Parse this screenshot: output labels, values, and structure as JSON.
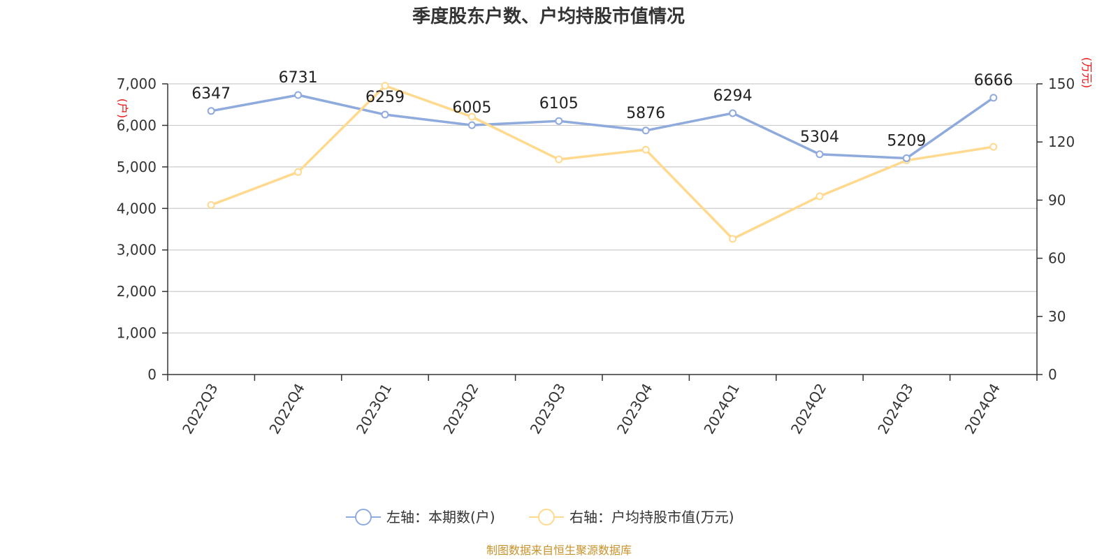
{
  "colors": {
    "left_series": "#8faadc",
    "right_series": "#ffd98e",
    "axis": "#333333",
    "grid": "#cccccc",
    "unit_text": "#ee1111",
    "source_text": "#c8922a"
  },
  "chart_data": {
    "type": "line",
    "title": "季度股东户数、户均持股市值情况",
    "categories": [
      "2022Q3",
      "2022Q4",
      "2023Q1",
      "2023Q2",
      "2023Q3",
      "2023Q4",
      "2024Q1",
      "2024Q2",
      "2024Q3",
      "2024Q4"
    ],
    "left_axis": {
      "unit": "(户)",
      "ylim": [
        0,
        7000
      ],
      "ticks": [
        0,
        1000,
        2000,
        3000,
        4000,
        5000,
        6000,
        7000
      ],
      "tick_labels": [
        "0",
        "1,000",
        "2,000",
        "3,000",
        "4,000",
        "5,000",
        "6,000",
        "7,000"
      ]
    },
    "right_axis": {
      "unit": "(万元)",
      "ylim": [
        0,
        150
      ],
      "ticks": [
        0,
        30,
        60,
        90,
        120,
        150
      ],
      "tick_labels": [
        "0",
        "30",
        "60",
        "90",
        "120",
        "150"
      ]
    },
    "grid": true,
    "legend_position": "bottom-center",
    "series": [
      {
        "name": "左轴：本期数(户)",
        "axis": "left",
        "values": [
          6347,
          6731,
          6259,
          6005,
          6105,
          5876,
          6294,
          5304,
          5209,
          6666
        ],
        "labels": [
          "6347",
          "6731",
          "6259",
          "6005",
          "6105",
          "5876",
          "6294",
          "5304",
          "5209",
          "6666"
        ]
      },
      {
        "name": "右轴：户均持股市值(万元)",
        "axis": "right",
        "values": [
          87.5,
          104.5,
          149.0,
          133.0,
          111.0,
          116.0,
          70.0,
          92.0,
          110.5,
          117.5
        ]
      }
    ]
  },
  "footer": {
    "source": "制图数据来自恒生聚源数据库"
  }
}
